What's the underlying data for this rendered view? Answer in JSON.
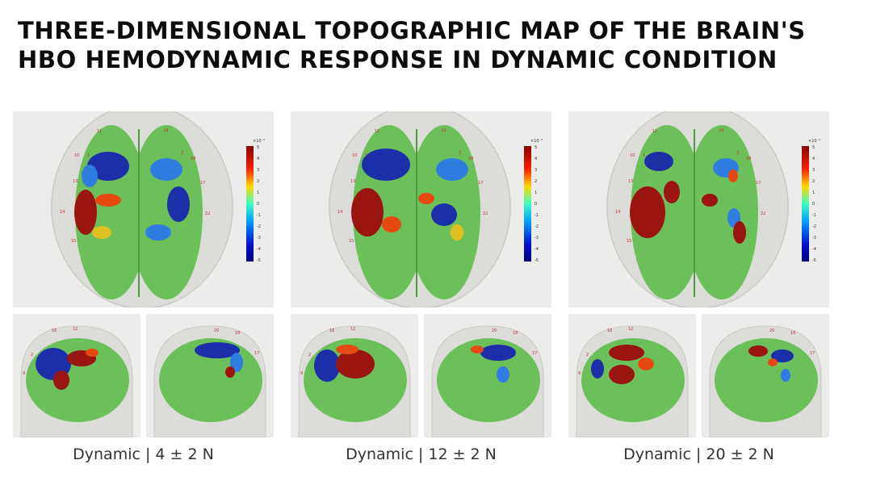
{
  "title": {
    "line1": "THREE-DIMENSIONAL TOPOGRAPHIC MAP OF THE BRAIN'S",
    "line2": "HBO HEMODYNAMIC RESPONSE IN DYNAMIC CONDITION"
  },
  "colorbar": {
    "exponent": "×10⁻⁵",
    "ticks": [
      "5",
      "4",
      "3",
      "2",
      "1",
      "0",
      "-1",
      "-2",
      "-3",
      "-4",
      "-5"
    ]
  },
  "channels_top": [
    "11",
    "19",
    "10",
    "1",
    "3",
    "18",
    "17",
    "13",
    "14",
    "15",
    "22"
  ],
  "channels_side": [
    "2",
    "16",
    "12",
    "9",
    "20"
  ],
  "conditions": [
    {
      "caption": "Dynamic | 4 ± 2 N"
    },
    {
      "caption": "Dynamic | 12 ± 2 N"
    },
    {
      "caption": "Dynamic | 20 ± 2 N"
    }
  ],
  "colors": {
    "brain": "#6cc05a",
    "high": "#9a1410",
    "mid_high": "#e64a12",
    "low": "#1a2fa8",
    "mid_low": "#2f7de0",
    "background": "#ececeb",
    "head": "#d9dbd6"
  }
}
